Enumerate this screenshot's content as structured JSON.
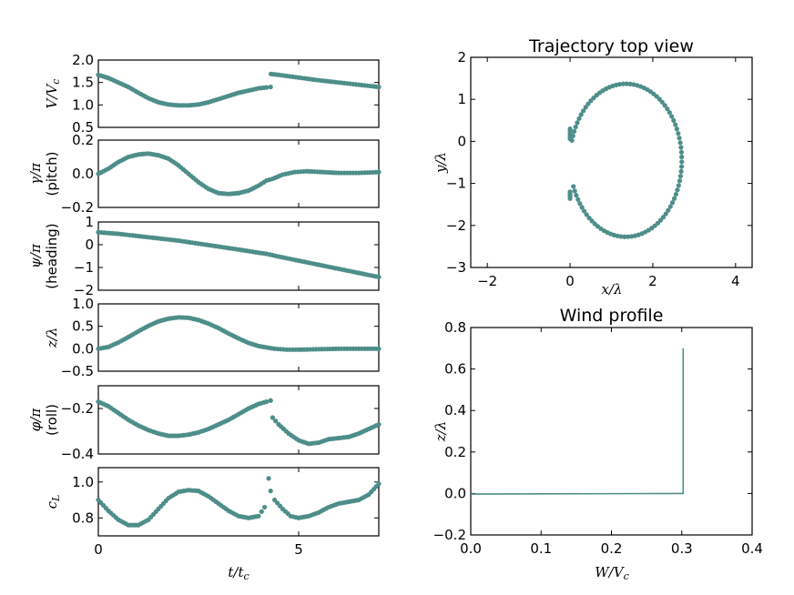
{
  "colors": {
    "series": "#4e8e8a",
    "axes": "#000000",
    "background": "#ffffff"
  },
  "chart_data": [
    {
      "id": "V",
      "type": "scatter",
      "ylabel": "V/V_c",
      "xlim": [
        0,
        7
      ],
      "ylim": [
        0.5,
        2.0
      ],
      "yticks": [
        "0.5",
        "1.0",
        "1.5",
        "2.0"
      ],
      "x": [
        0,
        0.25,
        0.5,
        0.75,
        1.0,
        1.25,
        1.5,
        1.75,
        2.0,
        2.25,
        2.5,
        2.75,
        3.0,
        3.25,
        3.5,
        3.75,
        4.0,
        4.2,
        4.3,
        4.31,
        4.5,
        5.0,
        5.5,
        6.0,
        6.5,
        7.0
      ],
      "y": [
        1.67,
        1.6,
        1.5,
        1.4,
        1.27,
        1.15,
        1.06,
        1.01,
        0.99,
        0.99,
        1.01,
        1.06,
        1.13,
        1.2,
        1.27,
        1.32,
        1.37,
        1.39,
        1.4,
        1.69,
        1.67,
        1.61,
        1.55,
        1.5,
        1.45,
        1.4
      ]
    },
    {
      "id": "gamma",
      "type": "scatter",
      "ylabel": "γ/π (pitch)",
      "xlim": [
        0,
        7
      ],
      "ylim": [
        -0.2,
        0.2
      ],
      "yticks": [
        "−0.2",
        "0.0",
        "0.2"
      ],
      "x": [
        0,
        0.25,
        0.5,
        0.75,
        1.0,
        1.25,
        1.5,
        1.75,
        2.0,
        2.25,
        2.5,
        2.75,
        3.0,
        3.25,
        3.5,
        3.75,
        4.0,
        4.2,
        4.35,
        4.6,
        4.9,
        5.2,
        5.6,
        6.0,
        6.5,
        7.0
      ],
      "y": [
        0.0,
        0.03,
        0.07,
        0.1,
        0.115,
        0.12,
        0.11,
        0.09,
        0.05,
        0.0,
        -0.05,
        -0.09,
        -0.115,
        -0.12,
        -0.115,
        -0.1,
        -0.07,
        -0.04,
        -0.03,
        -0.005,
        0.01,
        0.015,
        0.01,
        0.005,
        0.005,
        0.01
      ]
    },
    {
      "id": "psi",
      "type": "scatter",
      "ylabel": "ψ/π (heading)",
      "xlim": [
        0,
        7
      ],
      "ylim": [
        -2,
        1
      ],
      "yticks": [
        "−2",
        "−1",
        "0",
        "1"
      ],
      "x": [
        0,
        0.5,
        1.0,
        1.5,
        2.0,
        2.5,
        3.0,
        3.5,
        4.0,
        4.2,
        4.5,
        5.0,
        5.5,
        6.0,
        6.5,
        7.0
      ],
      "y": [
        0.55,
        0.48,
        0.38,
        0.28,
        0.18,
        0.05,
        -0.08,
        -0.21,
        -0.35,
        -0.4,
        -0.52,
        -0.7,
        -0.88,
        -1.06,
        -1.24,
        -1.42
      ]
    },
    {
      "id": "z",
      "type": "scatter",
      "ylabel": "z/λ",
      "xlim": [
        0,
        7
      ],
      "ylim": [
        -0.5,
        1.0
      ],
      "yticks": [
        "−0.5",
        "0.0",
        "0.5",
        "1.0"
      ],
      "x": [
        0,
        0.25,
        0.5,
        0.75,
        1.0,
        1.25,
        1.5,
        1.75,
        2.0,
        2.25,
        2.5,
        2.75,
        3.0,
        3.25,
        3.5,
        3.75,
        4.0,
        4.2,
        4.4,
        4.7,
        5.0,
        5.5,
        6.0,
        6.5,
        7.0
      ],
      "y": [
        0.0,
        0.04,
        0.14,
        0.26,
        0.39,
        0.51,
        0.61,
        0.67,
        0.7,
        0.69,
        0.64,
        0.56,
        0.46,
        0.34,
        0.23,
        0.13,
        0.06,
        0.03,
        0.0,
        -0.02,
        -0.02,
        -0.01,
        0.0,
        0.0,
        0.0
      ]
    },
    {
      "id": "phi",
      "type": "scatter",
      "ylabel": "φ/π (roll)",
      "xlim": [
        0,
        7
      ],
      "ylim": [
        -0.4,
        -0.1
      ],
      "yticks": [
        "−0.4",
        "−0.2"
      ],
      "x": [
        0,
        0.25,
        0.5,
        0.75,
        1.0,
        1.25,
        1.5,
        1.75,
        2.0,
        2.25,
        2.5,
        2.75,
        3.0,
        3.25,
        3.5,
        3.75,
        4.0,
        4.2,
        4.3,
        4.35,
        4.5,
        4.75,
        5.0,
        5.25,
        5.5,
        5.75,
        6.0,
        6.25,
        6.5,
        6.75,
        7.0
      ],
      "y": [
        -0.17,
        -0.19,
        -0.22,
        -0.25,
        -0.275,
        -0.295,
        -0.31,
        -0.32,
        -0.32,
        -0.315,
        -0.305,
        -0.29,
        -0.27,
        -0.25,
        -0.225,
        -0.2,
        -0.18,
        -0.17,
        -0.165,
        -0.24,
        -0.27,
        -0.31,
        -0.34,
        -0.355,
        -0.35,
        -0.335,
        -0.33,
        -0.325,
        -0.31,
        -0.29,
        -0.27
      ]
    },
    {
      "id": "cL",
      "type": "scatter",
      "ylabel": "c_L",
      "xlabel": "t/t_c",
      "xlim": [
        0,
        7
      ],
      "ylim": [
        0.7,
        1.08
      ],
      "yticks": [
        "0.8",
        "1.0"
      ],
      "xticks": [
        "0",
        "5"
      ],
      "x": [
        0,
        0.25,
        0.5,
        0.75,
        1.0,
        1.25,
        1.5,
        1.75,
        2.0,
        2.25,
        2.5,
        2.75,
        3.0,
        3.25,
        3.5,
        3.75,
        4.0,
        4.15,
        4.25,
        4.3,
        4.4,
        4.6,
        4.8,
        5.0,
        5.25,
        5.5,
        5.75,
        6.0,
        6.25,
        6.5,
        6.75,
        7.0
      ],
      "y": [
        0.9,
        0.84,
        0.79,
        0.76,
        0.76,
        0.79,
        0.85,
        0.91,
        0.945,
        0.955,
        0.95,
        0.92,
        0.88,
        0.84,
        0.81,
        0.8,
        0.81,
        0.86,
        1.02,
        0.95,
        0.9,
        0.85,
        0.81,
        0.8,
        0.81,
        0.83,
        0.86,
        0.88,
        0.89,
        0.9,
        0.93,
        0.99
      ]
    },
    {
      "id": "trajectory",
      "type": "scatter",
      "title": "Trajectory top view",
      "xlabel": "x/λ",
      "ylabel": "y/λ",
      "xlim": [
        -2.4,
        4.4
      ],
      "ylim": [
        -3,
        2
      ],
      "xticks": [
        "−2",
        "0",
        "2",
        "4"
      ],
      "yticks": [
        "−3",
        "−2",
        "−1",
        "0",
        "1",
        "2"
      ],
      "note": "closed ellipse-like loop centered near (1.3, -0.45)",
      "center": [
        1.35,
        -0.45
      ],
      "radii": [
        1.35,
        1.82
      ],
      "gap_start_deg": 185,
      "gap_end_deg": 160
    },
    {
      "id": "wind",
      "type": "line",
      "title": "Wind profile",
      "xlabel": "W/V_c",
      "ylabel": "z/λ",
      "xlim": [
        0.0,
        0.4
      ],
      "ylim": [
        -0.2,
        0.8
      ],
      "xticks": [
        "0.0",
        "0.1",
        "0.2",
        "0.3",
        "0.4"
      ],
      "yticks": [
        "−0.2",
        "0.0",
        "0.2",
        "0.4",
        "0.6",
        "0.8"
      ],
      "x": [
        0.0,
        0.1,
        0.2,
        0.295,
        0.302,
        0.302
      ],
      "y": [
        -0.003,
        -0.002,
        -0.001,
        0.0,
        0.0,
        0.7
      ]
    }
  ]
}
